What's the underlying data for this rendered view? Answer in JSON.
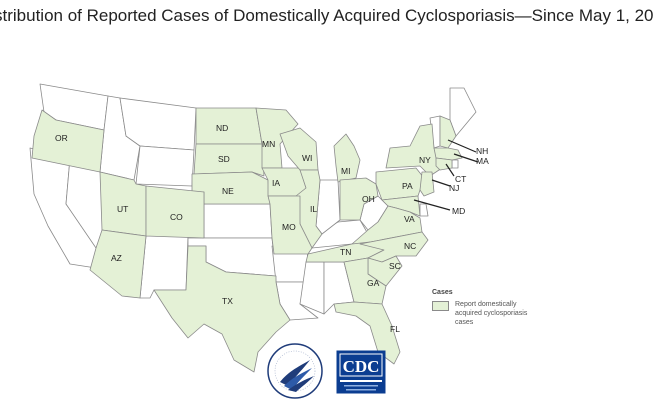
{
  "page": {
    "title": "stribution of Reported Cases of Domestically Acquired Cyclosporiasis—Since May 1, 20"
  },
  "map": {
    "colors": {
      "reported": "#e4f1d6",
      "not_reported": "#ffffff",
      "border": "#8a8a8a"
    },
    "states": [
      {
        "abbr": "OR",
        "reported": true
      },
      {
        "abbr": "ND",
        "reported": true
      },
      {
        "abbr": "SD",
        "reported": true
      },
      {
        "abbr": "MN",
        "reported": true
      },
      {
        "abbr": "WI",
        "reported": true
      },
      {
        "abbr": "MI",
        "reported": true
      },
      {
        "abbr": "NY",
        "reported": true
      },
      {
        "abbr": "NH",
        "reported": true
      },
      {
        "abbr": "MA",
        "reported": true
      },
      {
        "abbr": "CT",
        "reported": true
      },
      {
        "abbr": "NJ",
        "reported": true
      },
      {
        "abbr": "PA",
        "reported": true
      },
      {
        "abbr": "MD",
        "reported": true
      },
      {
        "abbr": "OH",
        "reported": true
      },
      {
        "abbr": "IA",
        "reported": true
      },
      {
        "abbr": "NE",
        "reported": true
      },
      {
        "abbr": "IL",
        "reported": true
      },
      {
        "abbr": "UT",
        "reported": true
      },
      {
        "abbr": "CO",
        "reported": true
      },
      {
        "abbr": "MO",
        "reported": true
      },
      {
        "abbr": "VA",
        "reported": true
      },
      {
        "abbr": "AZ",
        "reported": true
      },
      {
        "abbr": "TN",
        "reported": true
      },
      {
        "abbr": "NC",
        "reported": true
      },
      {
        "abbr": "SC",
        "reported": true
      },
      {
        "abbr": "GA",
        "reported": true
      },
      {
        "abbr": "TX",
        "reported": true
      },
      {
        "abbr": "FL",
        "reported": true
      }
    ]
  },
  "legend": {
    "title": "Cases",
    "item": "Report domestically acquired cyclosporiasis cases"
  },
  "logos": {
    "hhs": "hhs-seal-icon",
    "cdc_text": "CDC",
    "cdc_tagline": "CENTERS FOR DISEASE CONTROL AND PREVENTION"
  }
}
